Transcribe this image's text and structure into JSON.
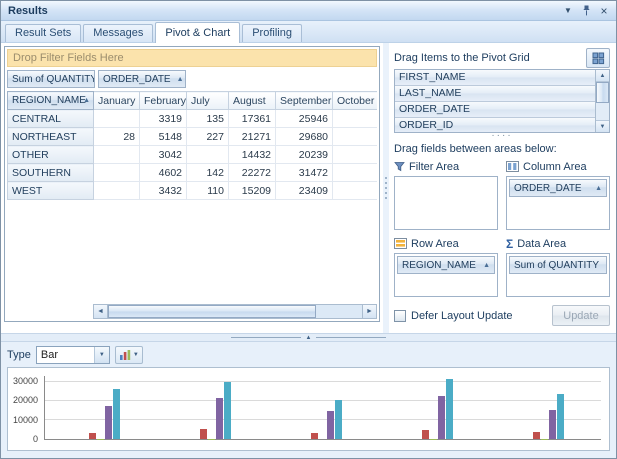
{
  "window": {
    "title": "Results"
  },
  "icons": {
    "sort_asc": "▲",
    "dropdown": "▼",
    "up": "▲",
    "down": "▼",
    "close": "×",
    "scroll_left": "◄",
    "scroll_right": "►",
    "sigma": "Σ",
    "collapse": "▲",
    "grip": "····"
  },
  "tabs": [
    {
      "label": "Result Sets",
      "active": false
    },
    {
      "label": "Messages",
      "active": false
    },
    {
      "label": "Pivot & Chart",
      "active": true
    },
    {
      "label": "Profiling",
      "active": false
    }
  ],
  "pivot": {
    "filter_drop_text": "Drop Filter Fields Here",
    "data_field": "Sum of QUANTITY",
    "column_field": "ORDER_DATE",
    "row_field": "REGION_NAME",
    "columns": [
      "January",
      "February",
      "July",
      "August",
      "September",
      "October"
    ],
    "rows": [
      {
        "region": "CENTRAL",
        "values": [
          "",
          "3319",
          "135",
          "17361",
          "25946",
          ""
        ]
      },
      {
        "region": "NORTHEAST",
        "values": [
          "28",
          "5148",
          "227",
          "21271",
          "29680",
          ""
        ]
      },
      {
        "region": "OTHER",
        "values": [
          "",
          "3042",
          "",
          "14432",
          "20239",
          ""
        ]
      },
      {
        "region": "SOUTHERN",
        "values": [
          "",
          "4602",
          "142",
          "22272",
          "31472",
          ""
        ]
      },
      {
        "region": "WEST",
        "values": [
          "",
          "3432",
          "110",
          "15209",
          "23409",
          ""
        ]
      }
    ]
  },
  "right_panel": {
    "drag_items_label": "Drag Items to the Pivot Grid",
    "field_list": [
      "FIRST_NAME",
      "LAST_NAME",
      "ORDER_DATE",
      "ORDER_ID"
    ],
    "drag_fields_label": "Drag fields between areas below:",
    "areas": {
      "filter": {
        "label": "Filter Area",
        "fields": []
      },
      "column": {
        "label": "Column Area",
        "fields": [
          {
            "name": "ORDER_DATE",
            "sorted": true
          }
        ]
      },
      "row": {
        "label": "Row Area",
        "fields": [
          {
            "name": "REGION_NAME",
            "sorted": true
          }
        ]
      },
      "data": {
        "label": "Data Area",
        "fields": [
          {
            "name": "Sum of QUANTITY",
            "sorted": false
          }
        ]
      }
    },
    "defer_label": "Defer Layout Update",
    "update_label": "Update"
  },
  "chart_toolbar": {
    "type_label": "Type",
    "type_value": "Bar"
  },
  "chart_data": {
    "type": "bar",
    "title": "",
    "xlabel": "",
    "ylabel": "",
    "categories": [
      "CENTRAL",
      "NORTHEAST",
      "OTHER",
      "SOUTHERN",
      "WEST"
    ],
    "series": [
      {
        "name": "January",
        "color": "#4f81bd",
        "values": [
          0,
          28,
          0,
          0,
          0
        ]
      },
      {
        "name": "February",
        "color": "#c0504d",
        "values": [
          3319,
          5148,
          3042,
          4602,
          3432
        ]
      },
      {
        "name": "July",
        "color": "#9bbb59",
        "values": [
          135,
          227,
          0,
          142,
          110
        ]
      },
      {
        "name": "August",
        "color": "#8064a2",
        "values": [
          17361,
          21271,
          14432,
          22272,
          15209
        ]
      },
      {
        "name": "September",
        "color": "#4bacc6",
        "values": [
          25946,
          29680,
          20239,
          31472,
          23409
        ]
      }
    ],
    "ylim": [
      0,
      30000
    ],
    "yticks": [
      0,
      10000,
      20000,
      30000
    ],
    "grid": true,
    "legend": "none"
  }
}
